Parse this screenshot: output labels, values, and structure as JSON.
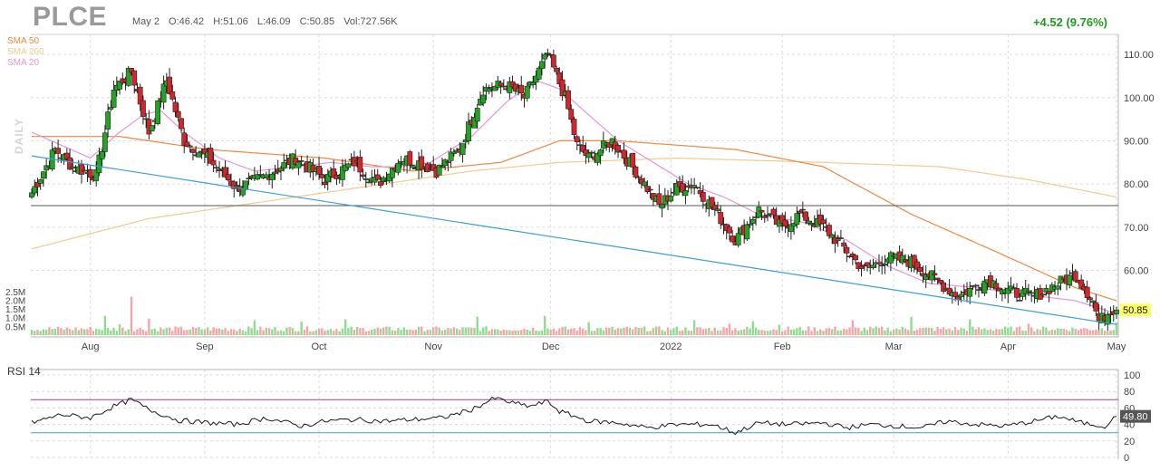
{
  "header": {
    "ticker": "PLCE",
    "date": "May 2",
    "open": "O:46.42",
    "high": "H:51.06",
    "low": "L:46.09",
    "close": "C:50.85",
    "volume": "Vol:727.56K",
    "change": "+4.52 (9.76%)"
  },
  "legend": {
    "sma50": "SMA 50",
    "sma200": "SMA 200",
    "sma20": "SMA 20",
    "period": "DAILY"
  },
  "colors": {
    "up": "#22a622",
    "down": "#d0262c",
    "vol_up": "#8fdc8f",
    "vol_down": "#f4a5a8",
    "sma50": "#f0883e",
    "sma200": "#f5c98d",
    "sma20": "#e596d9",
    "trendline": "#3aa0d8",
    "hline": "#555555",
    "rsi": "#1a1a1a",
    "rsi_upper": "#a03aa0",
    "rsi_lower": "#3aa0d8",
    "last_price_bg": "#ffff66"
  },
  "chart_data": [
    {
      "type": "candlestick",
      "title": "PLCE",
      "x_months": [
        "Aug",
        "Sep",
        "Oct",
        "Nov",
        "Dec",
        "2022",
        "Feb",
        "Mar",
        "Apr",
        "May"
      ],
      "price_ticks": [
        "110.00",
        "100.00",
        "90.00",
        "80.00",
        "70.00",
        "60.00"
      ],
      "volume_ticks": [
        "2.5M",
        "2.0M",
        "1.5M",
        "1.0M",
        "0.5M"
      ],
      "ylim": [
        46,
        114
      ],
      "last_price_label": "50.85",
      "horizontal_line": 75,
      "trendline": [
        [
          0,
          86.5
        ],
        [
          120,
          73.5
        ],
        [
          250,
          46
        ]
      ],
      "anchors": [
        [
          0,
          78
        ],
        [
          8,
          88
        ],
        [
          14,
          84
        ],
        [
          22,
          82
        ],
        [
          28,
          102
        ],
        [
          34,
          106
        ],
        [
          40,
          92
        ],
        [
          46,
          104
        ],
        [
          52,
          90
        ],
        [
          60,
          86
        ],
        [
          70,
          79
        ],
        [
          80,
          82
        ],
        [
          90,
          86
        ],
        [
          100,
          81
        ],
        [
          110,
          85
        ],
        [
          118,
          80
        ],
        [
          126,
          86
        ],
        [
          132,
          85
        ],
        [
          138,
          83
        ],
        [
          146,
          88
        ],
        [
          154,
          102
        ],
        [
          162,
          103
        ],
        [
          168,
          100
        ],
        [
          176,
          110
        ],
        [
          182,
          100
        ],
        [
          186,
          89
        ],
        [
          190,
          86
        ],
        [
          198,
          90
        ],
        [
          206,
          83
        ],
        [
          214,
          75
        ],
        [
          220,
          79
        ],
        [
          226,
          80
        ],
        [
          234,
          73
        ],
        [
          240,
          67
        ],
        [
          248,
          74
        ],
        [
          256,
          70
        ],
        [
          262,
          73
        ],
        [
          270,
          70
        ],
        [
          276,
          66
        ],
        [
          284,
          60
        ],
        [
          292,
          63
        ],
        [
          300,
          62
        ],
        [
          308,
          58
        ],
        [
          316,
          54
        ],
        [
          326,
          58
        ],
        [
          334,
          55
        ],
        [
          342,
          54
        ],
        [
          350,
          57
        ],
        [
          356,
          59
        ],
        [
          362,
          53
        ],
        [
          364,
          48
        ],
        [
          368,
          51
        ],
        [
          370,
          50.85
        ]
      ],
      "volume_avg_m": 0.36,
      "volume_spikes_m": [
        [
          25,
          1.1
        ],
        [
          30,
          0.62
        ],
        [
          34,
          2.2
        ],
        [
          40,
          0.95
        ],
        [
          76,
          0.85
        ],
        [
          92,
          0.78
        ],
        [
          107,
          0.9
        ],
        [
          152,
          1.05
        ],
        [
          175,
          1.1
        ],
        [
          190,
          0.75
        ],
        [
          226,
          0.85
        ],
        [
          238,
          0.65
        ],
        [
          246,
          0.8
        ],
        [
          255,
          0.6
        ],
        [
          280,
          0.85
        ],
        [
          300,
          1.05
        ],
        [
          320,
          0.9
        ],
        [
          340,
          0.65
        ],
        [
          370,
          0.73
        ]
      ],
      "sma20_anchors": [
        [
          0,
          92
        ],
        [
          20,
          86
        ],
        [
          30,
          92
        ],
        [
          38,
          96
        ],
        [
          44,
          97
        ],
        [
          52,
          92
        ],
        [
          64,
          86
        ],
        [
          76,
          83
        ],
        [
          90,
          84
        ],
        [
          102,
          85
        ],
        [
          116,
          84
        ],
        [
          126,
          84
        ],
        [
          136,
          85
        ],
        [
          150,
          91
        ],
        [
          162,
          99
        ],
        [
          172,
          104
        ],
        [
          180,
          102
        ],
        [
          190,
          96
        ],
        [
          200,
          90
        ],
        [
          212,
          85
        ],
        [
          224,
          80
        ],
        [
          236,
          77
        ],
        [
          248,
          73
        ],
        [
          264,
          71
        ],
        [
          278,
          67
        ],
        [
          292,
          61
        ],
        [
          306,
          57
        ],
        [
          322,
          56
        ],
        [
          344,
          54
        ],
        [
          356,
          53
        ],
        [
          370,
          50
        ]
      ],
      "sma50_anchors": [
        [
          0,
          91
        ],
        [
          30,
          91
        ],
        [
          60,
          88
        ],
        [
          100,
          86
        ],
        [
          130,
          83
        ],
        [
          160,
          85
        ],
        [
          180,
          90
        ],
        [
          200,
          90
        ],
        [
          240,
          88
        ],
        [
          270,
          84
        ],
        [
          300,
          73
        ],
        [
          330,
          64
        ],
        [
          356,
          56
        ],
        [
          370,
          53
        ]
      ],
      "sma200_anchors": [
        [
          0,
          65
        ],
        [
          40,
          72
        ],
        [
          80,
          76
        ],
        [
          120,
          80
        ],
        [
          150,
          83
        ],
        [
          180,
          85
        ],
        [
          220,
          86
        ],
        [
          270,
          85
        ],
        [
          310,
          84
        ],
        [
          340,
          81
        ],
        [
          370,
          77
        ]
      ]
    },
    {
      "type": "line",
      "title": "RSI 14",
      "y_ticks": [
        "100",
        "80",
        "60",
        "40",
        "20",
        "0"
      ],
      "ylim": [
        0,
        100
      ],
      "upper_band": 70,
      "lower_band": 30,
      "last_value_label": "49.80",
      "anchors": [
        [
          0,
          42
        ],
        [
          10,
          52
        ],
        [
          20,
          48
        ],
        [
          28,
          62
        ],
        [
          34,
          70
        ],
        [
          40,
          58
        ],
        [
          50,
          45
        ],
        [
          60,
          42
        ],
        [
          70,
          40
        ],
        [
          80,
          48
        ],
        [
          92,
          38
        ],
        [
          100,
          44
        ],
        [
          110,
          46
        ],
        [
          120,
          44
        ],
        [
          130,
          46
        ],
        [
          140,
          48
        ],
        [
          150,
          58
        ],
        [
          158,
          72
        ],
        [
          164,
          66
        ],
        [
          170,
          62
        ],
        [
          176,
          68
        ],
        [
          180,
          56
        ],
        [
          190,
          44
        ],
        [
          200,
          42
        ],
        [
          210,
          36
        ],
        [
          220,
          40
        ],
        [
          232,
          40
        ],
        [
          240,
          30
        ],
        [
          248,
          42
        ],
        [
          258,
          40
        ],
        [
          270,
          42
        ],
        [
          278,
          36
        ],
        [
          286,
          40
        ],
        [
          296,
          38
        ],
        [
          304,
          36
        ],
        [
          312,
          44
        ],
        [
          322,
          40
        ],
        [
          332,
          38
        ],
        [
          342,
          44
        ],
        [
          350,
          50
        ],
        [
          358,
          42
        ],
        [
          366,
          38
        ],
        [
          370,
          49.8
        ]
      ]
    }
  ]
}
